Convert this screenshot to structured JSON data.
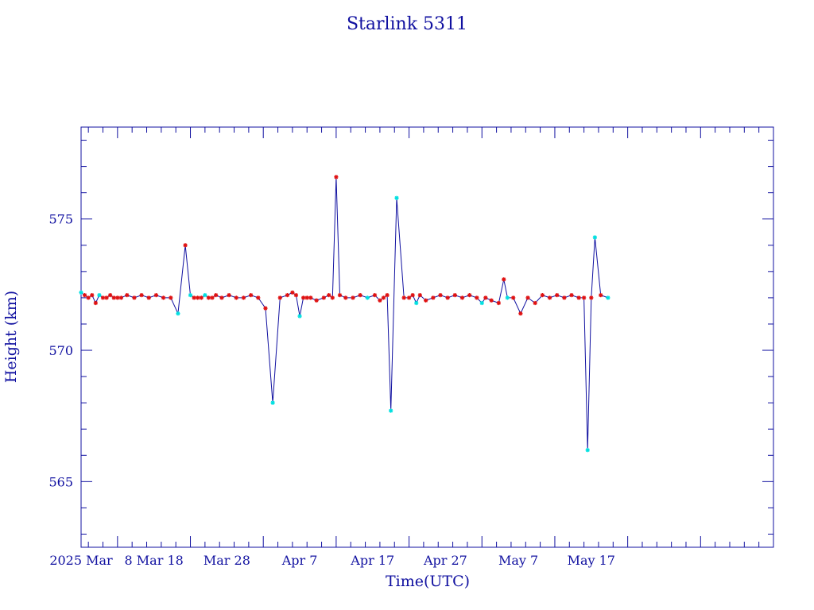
{
  "chart_data": {
    "type": "line",
    "title": "Starlink 5311",
    "xlabel": "Time(UTC)",
    "ylabel": "Height (km)",
    "x_tick_labels": [
      "2025 Mar",
      "8 Mar 18",
      "Mar 28",
      "Apr 7",
      "Apr 17",
      "Apr 27",
      "May 7",
      "May 17"
    ],
    "y_tick_labels": [
      "565",
      "570",
      "575"
    ],
    "y_ticks": [
      565,
      570,
      575
    ],
    "ylim": [
      562.5,
      578.5
    ],
    "xlim": [
      "2025-02-21",
      "2025-05-27"
    ],
    "grid": false,
    "legend": "none",
    "colors": {
      "line": "#1010a0",
      "star_red": "#e01010",
      "star_cyan": "#00e0e0",
      "text": "#1010a0"
    },
    "series": [
      {
        "x": [
          "2025-02-21",
          "2025-02-21",
          "2025-02-22",
          "2025-02-22",
          "2025-02-23",
          "2025-02-23",
          "2025-02-24",
          "2025-02-24",
          "2025-02-25",
          "2025-02-25",
          "2025-02-26",
          "2025-02-26",
          "2025-02-27",
          "2025-02-28",
          "2025-03-01",
          "2025-03-02",
          "2025-03-03",
          "2025-03-04",
          "2025-03-05",
          "2025-03-06",
          "2025-03-07",
          "2025-03-08",
          "2025-03-08",
          "2025-03-09",
          "2025-03-09",
          "2025-03-10",
          "2025-03-10",
          "2025-03-11",
          "2025-03-11",
          "2025-03-12",
          "2025-03-13",
          "2025-03-14",
          "2025-03-15",
          "2025-03-16",
          "2025-03-17",
          "2025-03-18",
          "2025-03-19",
          "2025-03-20",
          "2025-03-21",
          "2025-03-22",
          "2025-03-22",
          "2025-03-23",
          "2025-03-23",
          "2025-03-24",
          "2025-03-24",
          "2025-03-25",
          "2025-03-26",
          "2025-03-27",
          "2025-03-27",
          "2025-03-28",
          "2025-03-28",
          "2025-03-29",
          "2025-03-30",
          "2025-03-31",
          "2025-04-01",
          "2025-04-02",
          "2025-04-03",
          "2025-04-03",
          "2025-04-04",
          "2025-04-04",
          "2025-04-05",
          "2025-04-06",
          "2025-04-07",
          "2025-04-07",
          "2025-04-08",
          "2025-04-08",
          "2025-04-09",
          "2025-04-10",
          "2025-04-11",
          "2025-04-12",
          "2025-04-13",
          "2025-04-14",
          "2025-04-15",
          "2025-04-16",
          "2025-04-17",
          "2025-04-17",
          "2025-04-18",
          "2025-04-19",
          "2025-04-20",
          "2025-04-20",
          "2025-04-21",
          "2025-04-22",
          "2025-04-23",
          "2025-04-24",
          "2025-04-25",
          "2025-04-26",
          "2025-04-27",
          "2025-04-28",
          "2025-04-29",
          "2025-04-30",
          "2025-05-01",
          "2025-05-01",
          "2025-05-02",
          "2025-05-02",
          "2025-05-03",
          "2025-05-04"
        ],
        "y": [
          572.2,
          572.1,
          572.0,
          572.1,
          571.8,
          572.1,
          572.0,
          572.0,
          572.1,
          572.0,
          572.0,
          572.0,
          572.1,
          572.0,
          572.1,
          572.0,
          572.1,
          572.0,
          572.0,
          571.4,
          574.0,
          572.1,
          572.0,
          572.0,
          572.0,
          572.1,
          572.0,
          572.0,
          572.1,
          572.0,
          572.1,
          572.0,
          572.0,
          572.1,
          572.0,
          571.6,
          568.0,
          572.0,
          572.1,
          572.2,
          572.1,
          571.3,
          572.0,
          572.0,
          572.0,
          571.9,
          572.0,
          572.1,
          572.0,
          576.6,
          572.1,
          572.0,
          572.0,
          572.1,
          572.0,
          572.1,
          571.9,
          572.0,
          572.1,
          567.7,
          575.8,
          572.0,
          572.0,
          572.1,
          571.8,
          572.1,
          571.9,
          572.0,
          572.1,
          572.0,
          572.1,
          572.0,
          572.1,
          572.0,
          571.8,
          572.0,
          571.9,
          571.8,
          572.7,
          572.0,
          572.0,
          571.4,
          572.0,
          571.8,
          572.1,
          572.0,
          572.1,
          572.0,
          572.1,
          572.0,
          572.0,
          566.2,
          572.0,
          574.3,
          572.1,
          572.0
        ],
        "star_colors": [
          "cyan",
          "red",
          "red",
          "red",
          "red",
          "cyan",
          "red",
          "red",
          "red",
          "red",
          "red",
          "red",
          "red",
          "red",
          "red",
          "red",
          "red",
          "red",
          "red",
          "cyan",
          "red",
          "cyan",
          "red",
          "red",
          "red",
          "cyan",
          "red",
          "red",
          "red",
          "red",
          "red",
          "red",
          "red",
          "red",
          "red",
          "red",
          "cyan",
          "red",
          "red",
          "red",
          "red",
          "cyan",
          "red",
          "red",
          "red",
          "red",
          "red",
          "red",
          "red",
          "red",
          "red",
          "red",
          "red",
          "red",
          "cyan",
          "red",
          "red",
          "red",
          "red",
          "cyan",
          "cyan",
          "red",
          "red",
          "red",
          "cyan",
          "red",
          "red",
          "red",
          "red",
          "red",
          "red",
          "red",
          "red",
          "red",
          "cyan",
          "red",
          "red",
          "red",
          "red",
          "cyan",
          "red",
          "red",
          "red",
          "red",
          "red",
          "red",
          "red",
          "red",
          "red",
          "red",
          "red",
          "cyan",
          "red",
          "cyan",
          "red",
          "cyan"
        ]
      }
    ]
  }
}
